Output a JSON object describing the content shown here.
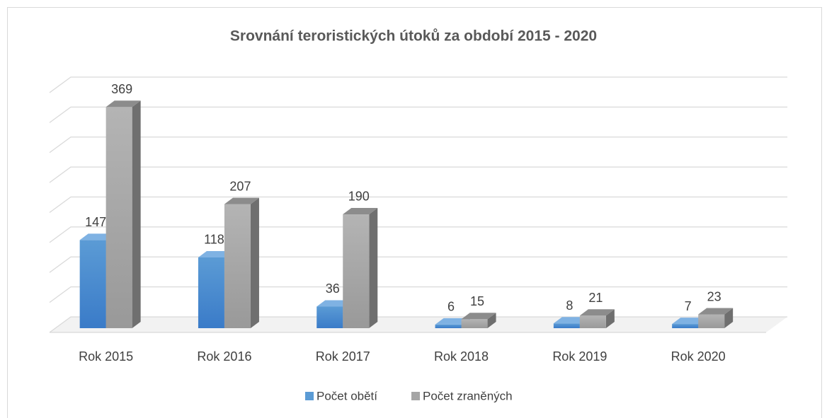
{
  "chart_data": {
    "type": "bar3d",
    "title": "Srovnání teroristických útoků za období 2015 - 2020",
    "categories": [
      "Rok 2015",
      "Rok 2016",
      "Rok 2017",
      "Rok 2018",
      "Rok 2019",
      "Rok 2020"
    ],
    "series": [
      {
        "name": "Počet obětí",
        "color": "#5b9bd5",
        "values": [
          147,
          118,
          36,
          6,
          8,
          7
        ]
      },
      {
        "name": "Počet zraněných",
        "color": "#a5a5a5",
        "values": [
          369,
          207,
          190,
          15,
          21,
          23
        ]
      }
    ],
    "ylim": [
      0,
      400
    ],
    "yticks": [
      0,
      50,
      100,
      150,
      200,
      250,
      300,
      350,
      400
    ],
    "grid": true
  }
}
